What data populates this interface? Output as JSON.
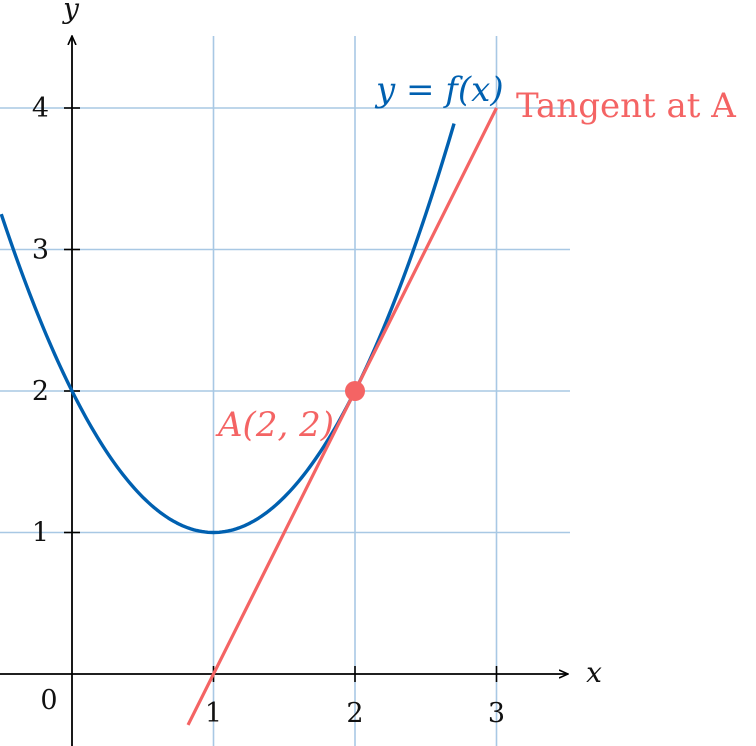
{
  "chart_data": {
    "type": "line",
    "title": "",
    "xlabel": "x",
    "ylabel": "y",
    "xlim": [
      -0.5,
      3.5
    ],
    "ylim": [
      -0.5,
      4.5
    ],
    "grid": true,
    "x_ticks": [
      1,
      2,
      3
    ],
    "y_ticks": [
      1,
      2,
      3,
      4
    ],
    "origin_label": "0",
    "series": [
      {
        "name": "y = f(x)",
        "function": "(x-1)^2 + 1",
        "x": [
          -0.5,
          -0.25,
          0,
          0.25,
          0.5,
          0.75,
          1,
          1.25,
          1.5,
          1.75,
          2,
          2.25,
          2.5,
          2.7
        ],
        "y": [
          3.25,
          2.5625,
          2,
          1.5625,
          1.25,
          1.0625,
          1,
          1.0625,
          1.25,
          1.5625,
          2,
          2.5625,
          3.25,
          3.89
        ],
        "color": "#0060b0"
      },
      {
        "name": "Tangent at A",
        "function": "2x - 2",
        "x": [
          0.82,
          3
        ],
        "y": [
          -0.36,
          4
        ],
        "color": "#f46464"
      }
    ],
    "points": [
      {
        "label": "A(2, 2)",
        "x": 2,
        "y": 2,
        "color": "#f46464"
      }
    ],
    "colors": {
      "grid": "#a8c8e4",
      "axis": "#000000",
      "curve": "#0060b0",
      "tangent": "#f46464"
    }
  }
}
